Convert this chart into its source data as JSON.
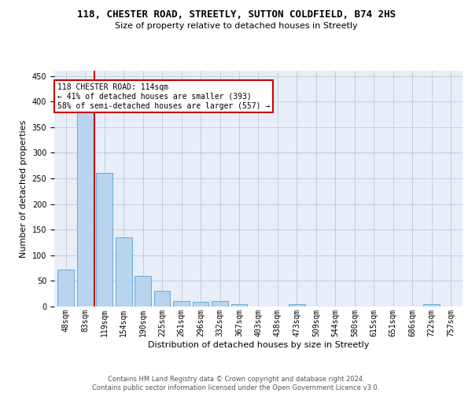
{
  "title": "118, CHESTER ROAD, STREETLY, SUTTON COLDFIELD, B74 2HS",
  "subtitle": "Size of property relative to detached houses in Streetly",
  "xlabel": "Distribution of detached houses by size in Streetly",
  "ylabel": "Number of detached properties",
  "bar_labels": [
    "48sqm",
    "83sqm",
    "119sqm",
    "154sqm",
    "190sqm",
    "225sqm",
    "261sqm",
    "296sqm",
    "332sqm",
    "367sqm",
    "403sqm",
    "438sqm",
    "473sqm",
    "509sqm",
    "544sqm",
    "580sqm",
    "615sqm",
    "651sqm",
    "686sqm",
    "722sqm",
    "757sqm"
  ],
  "bar_values": [
    72,
    380,
    260,
    135,
    60,
    30,
    10,
    9,
    10,
    5,
    0,
    0,
    5,
    0,
    0,
    0,
    0,
    0,
    0,
    5,
    0
  ],
  "bar_color": "#b8d4ee",
  "bar_edge_color": "#6aaad4",
  "property_line_index": 2,
  "property_line_color": "#cc0000",
  "annotation_line1": "118 CHESTER ROAD: 114sqm",
  "annotation_line2": "← 41% of detached houses are smaller (393)",
  "annotation_line3": "58% of semi-detached houses are larger (557) →",
  "annotation_box_facecolor": "#ffffff",
  "annotation_box_edgecolor": "#cc0000",
  "ylim": [
    0,
    460
  ],
  "yticks": [
    0,
    50,
    100,
    150,
    200,
    250,
    300,
    350,
    400,
    450
  ],
  "background_color": "#e8eef8",
  "footer_text": "Contains HM Land Registry data © Crown copyright and database right 2024.\nContains public sector information licensed under the Open Government Licence v3.0.",
  "grid_color": "#c5ccd8",
  "title_fontsize": 9,
  "subtitle_fontsize": 8,
  "ylabel_fontsize": 8,
  "xlabel_fontsize": 8,
  "tick_fontsize": 7
}
